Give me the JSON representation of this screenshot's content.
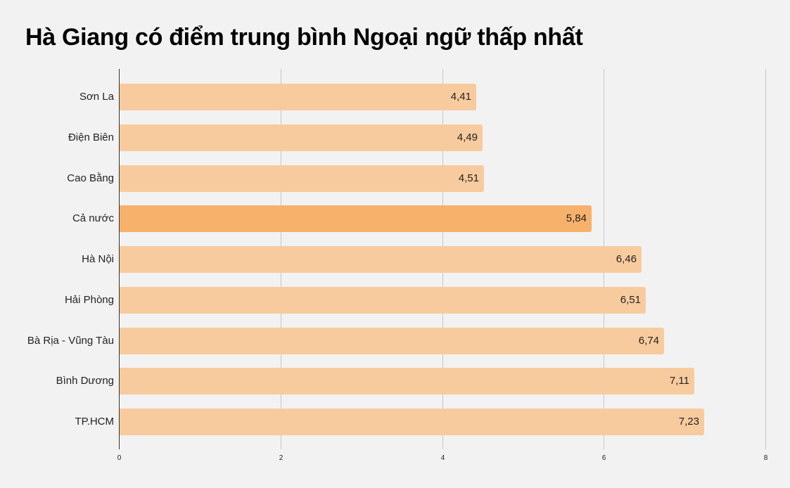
{
  "title": "Hà Giang có điểm trung bình Ngoại ngữ thấp nhất",
  "colors": {
    "background": "#f2f2f2",
    "bar": "#f8cb9e",
    "bar_highlight": "#f6b26b",
    "axis": "#333333",
    "grid": "#c6c6c6"
  },
  "chart_data": {
    "type": "bar",
    "orientation": "horizontal",
    "title": "Hà Giang có điểm trung bình Ngoại ngữ thấp nhất",
    "xlabel": "",
    "ylabel": "",
    "xlim": [
      0,
      8
    ],
    "x_ticks": [
      "0",
      "2",
      "4",
      "6",
      "8"
    ],
    "grid": true,
    "categories": [
      "Sơn La",
      "Điện Biên",
      "Cao Bằng",
      "Cả nước",
      "Hà Nội",
      "Hải Phòng",
      "Bà Rịa - Vũng Tàu",
      "Bình Dương",
      "TP.HCM"
    ],
    "values": [
      4.41,
      4.49,
      4.51,
      5.84,
      6.46,
      6.51,
      6.74,
      7.11,
      7.23
    ],
    "value_labels": [
      "4,41",
      "4,49",
      "4,51",
      "5,84",
      "6,46",
      "6,51",
      "6,74",
      "7,11",
      "7,23"
    ],
    "highlighted": [
      "Cả nước"
    ]
  }
}
